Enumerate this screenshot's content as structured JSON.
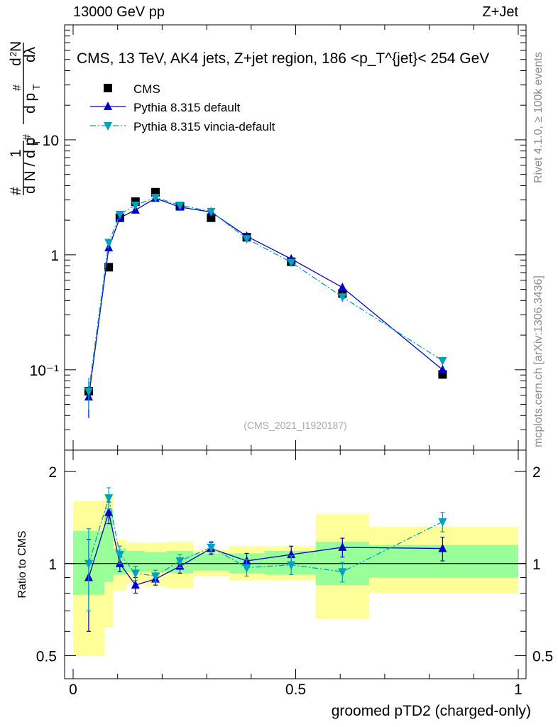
{
  "header": {
    "left": "13000 GeV pp",
    "right": "Z+Jet"
  },
  "side": {
    "rivet": "Rivet 4.1.0, ≥ 100k events",
    "mcplots": "mcplots.cern.ch [arXiv:1306.3436]"
  },
  "chart_data": {
    "type": "scatter",
    "title": "CMS, 13 TeV, AK4 jets, Z+jet region, 186 <p_T^{jet}< 254 GeV",
    "analysis_tag": "(CMS_2021_I1920187)",
    "xlabel": "groomed pTD2 (charged-only)",
    "ylabel": "1/dN/dpT  d²N/dpT dλ",
    "ratio_ylabel": "Ratio to CMS",
    "xlim": [
      0,
      1
    ],
    "ylim": [
      0.02,
      100
    ],
    "ratio_ylim": [
      0.42,
      2.35
    ],
    "x_ticks": [
      "0",
      "0.5",
      "1"
    ],
    "y_ticks": [
      "10⁻¹",
      "1",
      "10"
    ],
    "ratio_ticks": [
      "0.5",
      "1",
      "2"
    ],
    "x": [
      0.035,
      0.08,
      0.105,
      0.14,
      0.185,
      0.24,
      0.31,
      0.39,
      0.49,
      0.605,
      0.83
    ],
    "bins": [
      [
        0,
        0.07
      ],
      [
        0.07,
        0.09
      ],
      [
        0.09,
        0.12
      ],
      [
        0.12,
        0.16
      ],
      [
        0.16,
        0.21
      ],
      [
        0.21,
        0.27
      ],
      [
        0.27,
        0.35
      ],
      [
        0.35,
        0.43
      ],
      [
        0.43,
        0.545
      ],
      [
        0.545,
        0.665
      ],
      [
        0.665,
        1.0
      ]
    ],
    "series": [
      {
        "name": "CMS",
        "marker": "square",
        "color": "#000000",
        "values": [
          0.065,
          0.78,
          2.1,
          2.9,
          3.5,
          2.65,
          2.1,
          1.42,
          0.87,
          0.46,
          0.091
        ]
      },
      {
        "name": "Pythia 8.315 default",
        "marker": "triangle-up",
        "color": "#0000cc",
        "line": "solid",
        "values": [
          0.058,
          1.15,
          2.1,
          2.45,
          3.1,
          2.6,
          2.35,
          1.45,
          0.92,
          0.52,
          0.1
        ],
        "errors": [
          0.02,
          0.1,
          0.1,
          0.1,
          0.1,
          0.1,
          0.08,
          0.06,
          0.05,
          0.04,
          0.008
        ],
        "ratio": [
          0.9,
          1.47,
          1.0,
          0.85,
          0.89,
          0.98,
          1.12,
          1.02,
          1.07,
          1.13,
          1.12
        ],
        "ratio_err": [
          0.3,
          0.12,
          0.06,
          0.05,
          0.04,
          0.05,
          0.05,
          0.06,
          0.07,
          0.08,
          0.1
        ]
      },
      {
        "name": "Pythia 8.315 vincia-default",
        "marker": "triangle-down",
        "color": "#00a0c0",
        "line": "dashdot",
        "values": [
          0.065,
          1.28,
          2.25,
          2.7,
          3.15,
          2.7,
          2.38,
          1.38,
          0.86,
          0.43,
          0.12
        ],
        "errors": [
          0.02,
          0.11,
          0.1,
          0.1,
          0.1,
          0.1,
          0.08,
          0.06,
          0.05,
          0.04,
          0.01
        ],
        "ratio": [
          1.0,
          1.64,
          1.07,
          0.93,
          0.91,
          1.02,
          1.13,
          0.97,
          0.99,
          0.94,
          1.37
        ],
        "ratio_err": [
          0.3,
          0.13,
          0.07,
          0.05,
          0.04,
          0.05,
          0.05,
          0.06,
          0.07,
          0.07,
          0.1
        ]
      }
    ],
    "uncertainty_bands": {
      "inner_color": "#99ff99",
      "outer_color": "#ffff99",
      "inner": [
        [
          0.79,
          1.28
        ],
        [
          0.87,
          1.5
        ],
        [
          0.92,
          1.12
        ],
        [
          0.94,
          1.1
        ],
        [
          0.94,
          1.09
        ],
        [
          0.93,
          1.1
        ],
        [
          0.95,
          1.08
        ],
        [
          0.93,
          1.08
        ],
        [
          0.92,
          1.1
        ],
        [
          0.85,
          1.18
        ],
        [
          0.9,
          1.15
        ]
      ],
      "outer": [
        [
          0.5,
          1.6
        ],
        [
          0.62,
          1.7
        ],
        [
          0.82,
          1.2
        ],
        [
          0.86,
          1.17
        ],
        [
          0.84,
          1.17
        ],
        [
          0.83,
          1.18
        ],
        [
          0.91,
          1.11
        ],
        [
          0.88,
          1.14
        ],
        [
          0.88,
          1.14
        ],
        [
          0.66,
          1.45
        ],
        [
          0.8,
          1.32
        ]
      ]
    }
  }
}
